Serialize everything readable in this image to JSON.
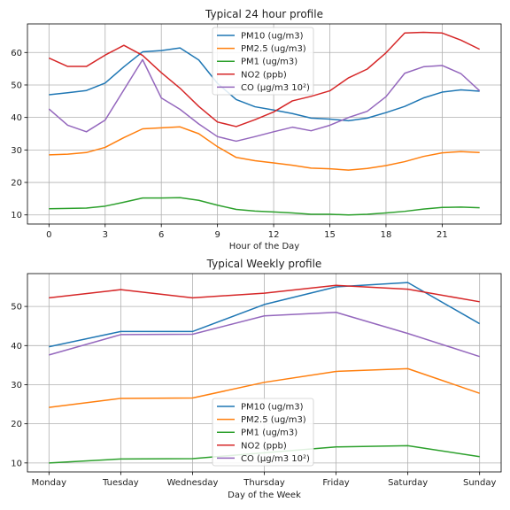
{
  "chart_data": [
    {
      "type": "line",
      "title": "Typical 24 hour profile",
      "xlabel": "Hour of the Day",
      "ylabel": "",
      "x": [
        0,
        1,
        2,
        3,
        4,
        5,
        6,
        7,
        8,
        9,
        10,
        11,
        12,
        13,
        14,
        15,
        16,
        17,
        18,
        19,
        20,
        21,
        22,
        23
      ],
      "xticks": [
        0,
        3,
        6,
        9,
        12,
        15,
        18,
        21
      ],
      "xlim": [
        -1.15,
        24.15
      ],
      "yticks": [
        10,
        20,
        30,
        40,
        50,
        60
      ],
      "ylim": [
        7.2,
        68.8
      ],
      "grid": true,
      "legend": "top-center",
      "series": [
        {
          "name": "PM10 (ug/m3)",
          "color": "#1f77b4",
          "values": [
            47,
            47.6,
            48.3,
            50.6,
            55.6,
            60.2,
            60.6,
            61.4,
            57.7,
            50.5,
            45.5,
            43.3,
            42.3,
            41.2,
            39.8,
            39.5,
            39.0,
            39.8,
            41.5,
            43.4,
            46,
            47.8,
            48.5,
            48.1
          ]
        },
        {
          "name": "PM2.5 (ug/m3)",
          "color": "#ff7f0e",
          "values": [
            28.5,
            28.7,
            29.2,
            30.8,
            33.8,
            36.5,
            36.8,
            37.1,
            35,
            31,
            27.7,
            26.7,
            26,
            25.3,
            24.4,
            24.2,
            23.8,
            24.3,
            25.2,
            26.4,
            28,
            29.1,
            29.5,
            29.2
          ]
        },
        {
          "name": "PM1 (ug/m3)",
          "color": "#2ca02c",
          "values": [
            11.9,
            12,
            12.1,
            12.7,
            13.9,
            15.2,
            15.2,
            15.3,
            14.5,
            13.0,
            11.7,
            11.2,
            10.9,
            10.6,
            10.2,
            10.2,
            10.0,
            10.2,
            10.6,
            11.1,
            11.8,
            12.3,
            12.4,
            12.2
          ]
        },
        {
          "name": "NO2 (ppb)",
          "color": "#d62728",
          "values": [
            58.3,
            55.7,
            55.7,
            59.2,
            62.2,
            59.1,
            53.8,
            49.0,
            43.4,
            38.6,
            37.2,
            39.3,
            41.7,
            45.1,
            46.5,
            48.2,
            52.2,
            54.9,
            59.9,
            66,
            66.2,
            66,
            63.8,
            61
          ]
        },
        {
          "name": "CO (µg/m3 10²)",
          "color": "#9467bd",
          "values": [
            42.6,
            37.6,
            35.6,
            39.2,
            48.5,
            57.8,
            46,
            42.5,
            38,
            34.1,
            32.7,
            34.1,
            35.6,
            37,
            35.9,
            37.6,
            40,
            41.9,
            46.4,
            53.6,
            55.6,
            56,
            53.5,
            48.2
          ]
        }
      ]
    },
    {
      "type": "line",
      "title": "Typical Weekly profile",
      "xlabel": "Day of the Week",
      "ylabel": "",
      "categories": [
        "Monday",
        "Tuesday",
        "Wednesday",
        "Thursday",
        "Friday",
        "Saturday",
        "Sunday"
      ],
      "xlim": [
        -0.3,
        6.3
      ],
      "yticks": [
        10,
        20,
        30,
        40,
        50
      ],
      "ylim": [
        7.7,
        58.4
      ],
      "grid": true,
      "legend": "bottom-center",
      "series": [
        {
          "name": "PM10 (ug/m3)",
          "color": "#1f77b4",
          "values": [
            39.7,
            43.6,
            43.6,
            50.5,
            55.0,
            56.1,
            45.6
          ]
        },
        {
          "name": "PM2.5 (ug/m3)",
          "color": "#ff7f0e",
          "values": [
            24.2,
            26.5,
            26.6,
            30.6,
            33.4,
            34.1,
            27.8
          ]
        },
        {
          "name": "PM1 (ug/m3)",
          "color": "#2ca02c",
          "values": [
            10,
            11,
            11.1,
            12.6,
            14.1,
            14.4,
            11.6
          ]
        },
        {
          "name": "NO2 (ppb)",
          "color": "#d62728",
          "values": [
            52.2,
            54.3,
            52.2,
            53.4,
            55.4,
            54.4,
            51.2
          ]
        },
        {
          "name": "CO (µg/m3 10²)",
          "color": "#9467bd",
          "values": [
            37.6,
            42.8,
            42.9,
            47.6,
            48.5,
            43.1,
            37.2
          ]
        }
      ]
    }
  ]
}
